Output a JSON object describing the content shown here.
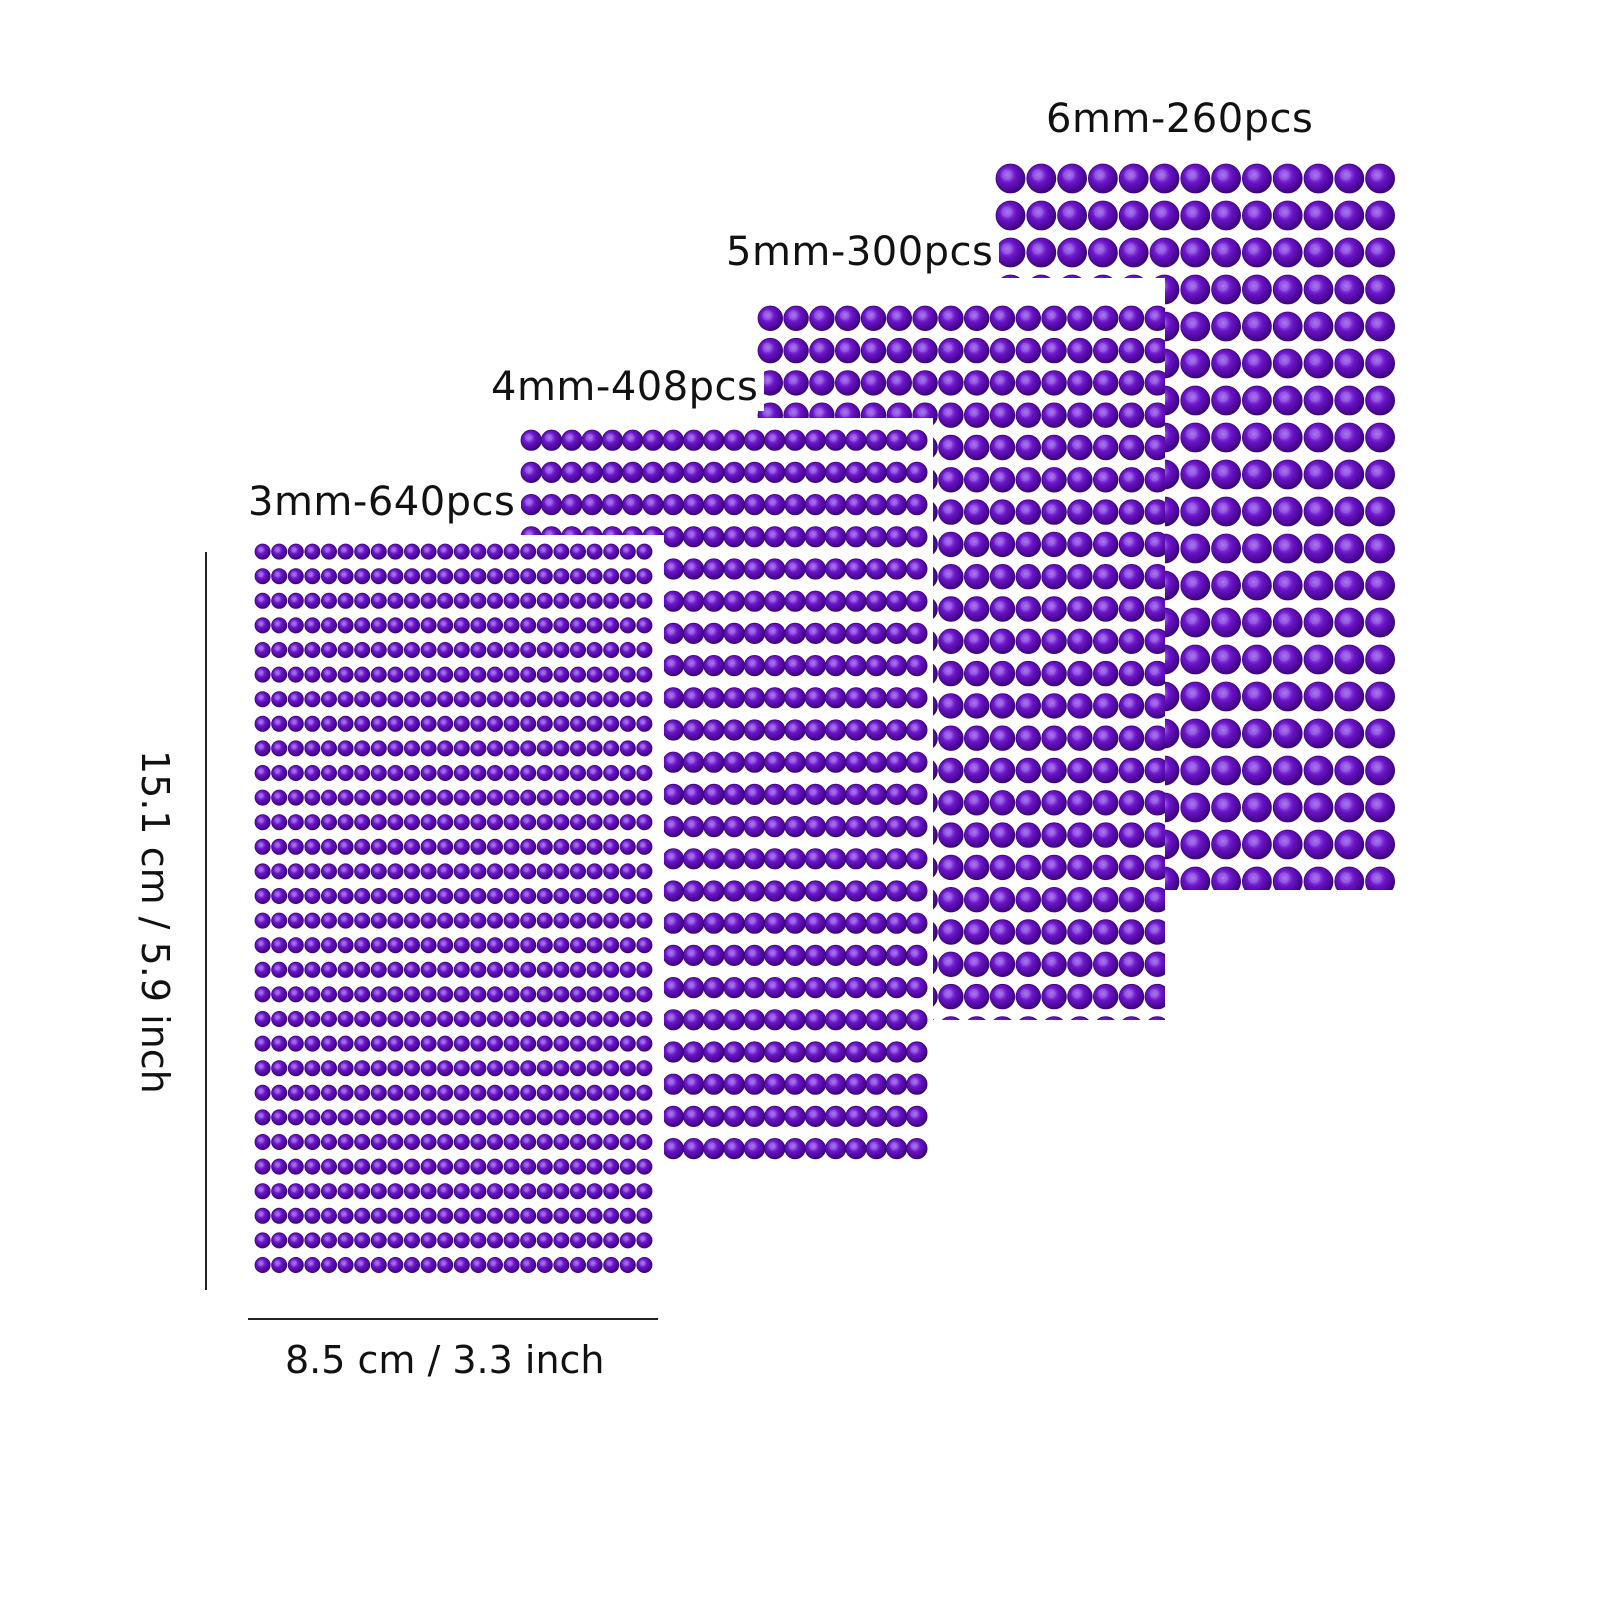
{
  "gem_color": "#6a12c8",
  "gem_highlight": "#a878ee",
  "gem_shadow": "#3a0478",
  "sheets": [
    {
      "label": "3mm-640pcs",
      "gem_mm": 3
    },
    {
      "label": "4mm-408pcs",
      "gem_mm": 4
    },
    {
      "label": "5mm-300pcs",
      "gem_mm": 5
    },
    {
      "label": "6mm-260pcs",
      "gem_mm": 6
    }
  ],
  "dimensions": {
    "width_label": "8.5 cm / 3.3 inch",
    "height_label": "15.1 cm / 5.9 inch"
  }
}
